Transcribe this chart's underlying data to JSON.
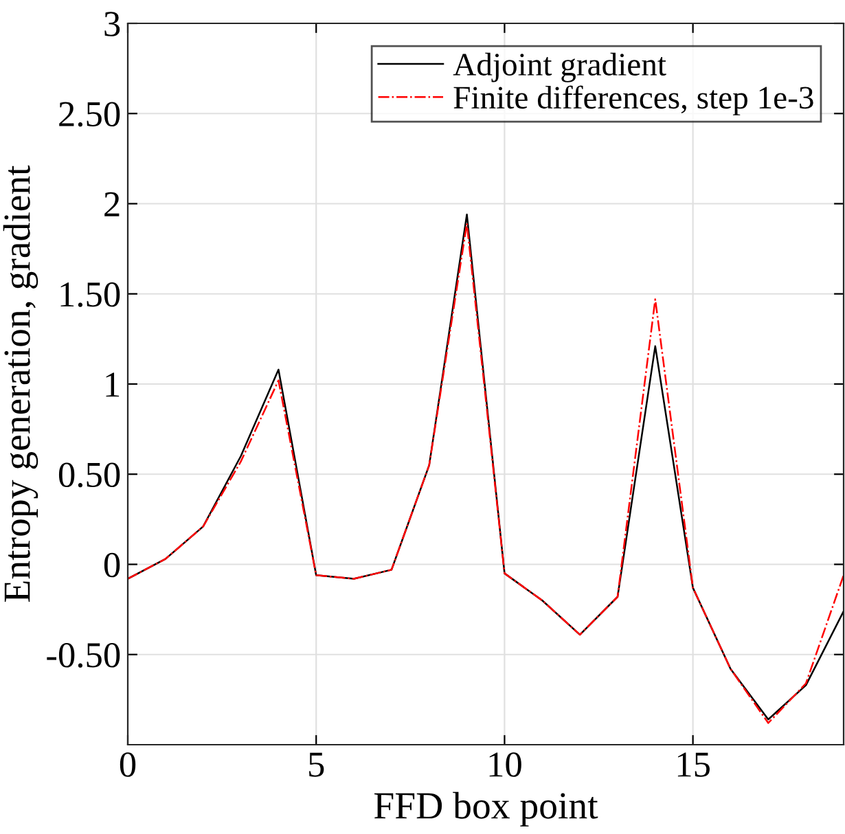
{
  "chart_data": {
    "type": "line",
    "xlabel": "FFD box point",
    "ylabel": "Entropy generation, gradient",
    "x": [
      0,
      1,
      2,
      3,
      4,
      5,
      6,
      7,
      8,
      9,
      10,
      11,
      12,
      13,
      14,
      15,
      16,
      17,
      18,
      19
    ],
    "series": [
      {
        "name": "Adjoint gradient",
        "color": "#000000",
        "line_style": "solid",
        "values": [
          -0.08,
          0.03,
          0.21,
          0.6,
          1.08,
          -0.06,
          -0.08,
          -0.03,
          0.55,
          1.94,
          -0.05,
          -0.2,
          -0.39,
          -0.18,
          1.21,
          -0.13,
          -0.58,
          -0.86,
          -0.67,
          -0.26
        ]
      },
      {
        "name": "Finite differences, step 1e-3",
        "color": "#ff0000",
        "line_style": "dashdot",
        "values": [
          -0.08,
          0.03,
          0.21,
          0.57,
          1.02,
          -0.06,
          -0.08,
          -0.03,
          0.55,
          1.89,
          -0.05,
          -0.2,
          -0.39,
          -0.18,
          1.47,
          -0.13,
          -0.58,
          -0.88,
          -0.66,
          -0.06
        ]
      }
    ],
    "xlim": [
      0,
      19
    ],
    "ylim": [
      -1,
      3
    ],
    "xticks": [
      0,
      5,
      10,
      15
    ],
    "yticks": [
      {
        "value": -0.5,
        "label": "-0.50"
      },
      0,
      {
        "value": 0.5,
        "label": "0.50"
      },
      1,
      {
        "value": 1.5,
        "label": "1.50"
      },
      2,
      {
        "value": 2.5,
        "label": "2.50"
      },
      3
    ],
    "grid": true,
    "legend": "top right",
    "marker": "none"
  }
}
